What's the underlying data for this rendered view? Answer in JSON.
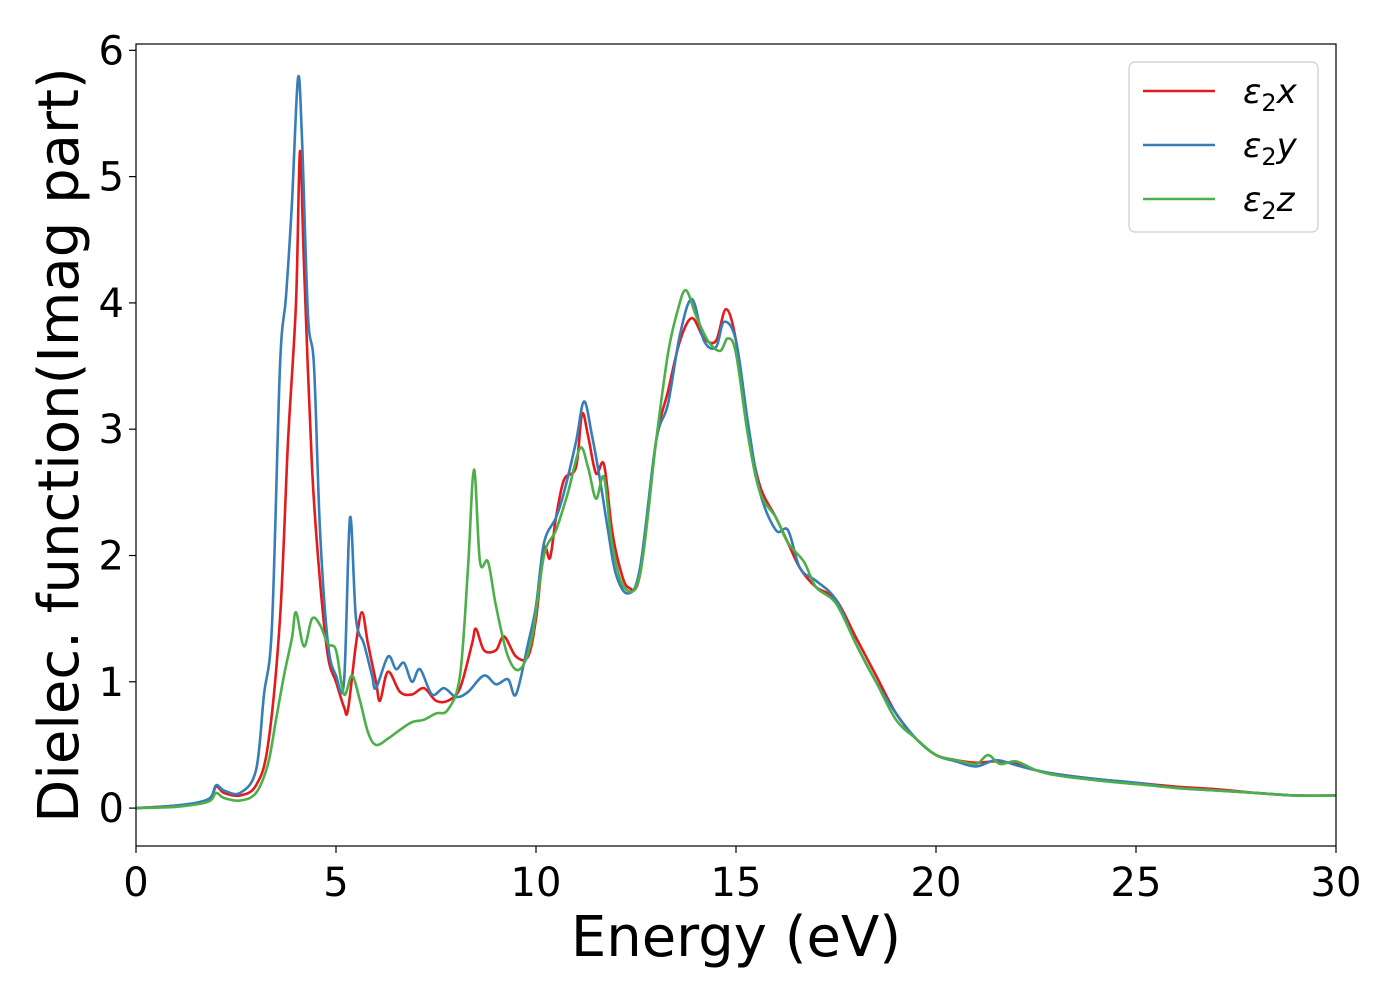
{
  "chart_data": {
    "type": "line",
    "title": "",
    "xlabel": "Energy (eV)",
    "ylabel": "Dielec. function(Imag part)",
    "xlim": [
      0,
      30
    ],
    "ylim": [
      -0.3,
      6.05
    ],
    "xticks": [
      0,
      5,
      10,
      15,
      20,
      25,
      30
    ],
    "xtick_labels": [
      "0",
      "5",
      "10",
      "15",
      "20",
      "25",
      "30"
    ],
    "yticks": [
      0,
      1,
      2,
      3,
      4,
      5,
      6
    ],
    "ytick_labels": [
      "0",
      "1",
      "2",
      "3",
      "4",
      "5",
      "6"
    ],
    "grid": false,
    "legend_position": "top-right",
    "series": [
      {
        "name": "ε₂x",
        "legend_base": "ε",
        "legend_sub": "2",
        "legend_tail": "x",
        "color": "#e41a1c",
        "points": [
          [
            0,
            0
          ],
          [
            1,
            0.02
          ],
          [
            1.8,
            0.06
          ],
          [
            2.0,
            0.17
          ],
          [
            2.2,
            0.12
          ],
          [
            2.6,
            0.1
          ],
          [
            3.0,
            0.18
          ],
          [
            3.3,
            0.5
          ],
          [
            3.6,
            1.5
          ],
          [
            3.8,
            2.9
          ],
          [
            4.0,
            4.0
          ],
          [
            4.1,
            5.2
          ],
          [
            4.2,
            4.3
          ],
          [
            4.4,
            2.7
          ],
          [
            4.6,
            1.8
          ],
          [
            4.8,
            1.2
          ],
          [
            5.0,
            1.0
          ],
          [
            5.2,
            0.8
          ],
          [
            5.3,
            0.78
          ],
          [
            5.5,
            1.3
          ],
          [
            5.65,
            1.55
          ],
          [
            5.8,
            1.3
          ],
          [
            6.0,
            1.0
          ],
          [
            6.1,
            0.85
          ],
          [
            6.3,
            1.08
          ],
          [
            6.6,
            0.92
          ],
          [
            6.9,
            0.9
          ],
          [
            7.2,
            0.95
          ],
          [
            7.5,
            0.85
          ],
          [
            7.8,
            0.85
          ],
          [
            8.1,
            0.95
          ],
          [
            8.4,
            1.3
          ],
          [
            8.5,
            1.42
          ],
          [
            8.7,
            1.25
          ],
          [
            9.0,
            1.25
          ],
          [
            9.2,
            1.36
          ],
          [
            9.5,
            1.2
          ],
          [
            9.8,
            1.2
          ],
          [
            10.0,
            1.5
          ],
          [
            10.2,
            2.05
          ],
          [
            10.35,
            1.98
          ],
          [
            10.5,
            2.3
          ],
          [
            10.7,
            2.6
          ],
          [
            11.0,
            2.7
          ],
          [
            11.15,
            3.12
          ],
          [
            11.3,
            2.95
          ],
          [
            11.5,
            2.65
          ],
          [
            11.7,
            2.72
          ],
          [
            11.9,
            2.2
          ],
          [
            12.1,
            1.9
          ],
          [
            12.3,
            1.75
          ],
          [
            12.6,
            1.85
          ],
          [
            13.0,
            2.9
          ],
          [
            13.3,
            3.3
          ],
          [
            13.6,
            3.7
          ],
          [
            13.9,
            3.88
          ],
          [
            14.2,
            3.72
          ],
          [
            14.5,
            3.7
          ],
          [
            14.75,
            3.95
          ],
          [
            15.0,
            3.7
          ],
          [
            15.3,
            3.0
          ],
          [
            15.6,
            2.55
          ],
          [
            16.0,
            2.3
          ],
          [
            16.3,
            2.1
          ],
          [
            16.6,
            1.9
          ],
          [
            17.0,
            1.75
          ],
          [
            17.5,
            1.65
          ],
          [
            18.0,
            1.35
          ],
          [
            18.5,
            1.05
          ],
          [
            19.0,
            0.75
          ],
          [
            19.5,
            0.55
          ],
          [
            20.0,
            0.42
          ],
          [
            20.5,
            0.38
          ],
          [
            21.0,
            0.36
          ],
          [
            21.5,
            0.37
          ],
          [
            22.0,
            0.35
          ],
          [
            22.5,
            0.3
          ],
          [
            23.0,
            0.27
          ],
          [
            24.0,
            0.23
          ],
          [
            25.0,
            0.2
          ],
          [
            26.0,
            0.17
          ],
          [
            27.0,
            0.15
          ],
          [
            28.0,
            0.12
          ],
          [
            29.0,
            0.1
          ],
          [
            30.0,
            0.1
          ]
        ]
      },
      {
        "name": "ε₂y",
        "legend_base": "ε",
        "legend_sub": "2",
        "legend_tail": "y",
        "color": "#377eb8",
        "points": [
          [
            0,
            0
          ],
          [
            1,
            0.02
          ],
          [
            1.8,
            0.07
          ],
          [
            2.0,
            0.18
          ],
          [
            2.2,
            0.14
          ],
          [
            2.6,
            0.12
          ],
          [
            3.0,
            0.3
          ],
          [
            3.2,
            0.9
          ],
          [
            3.4,
            1.45
          ],
          [
            3.6,
            3.5
          ],
          [
            3.75,
            4.05
          ],
          [
            3.9,
            4.8
          ],
          [
            4.05,
            5.78
          ],
          [
            4.15,
            5.3
          ],
          [
            4.3,
            3.9
          ],
          [
            4.45,
            3.5
          ],
          [
            4.6,
            2.2
          ],
          [
            4.8,
            1.3
          ],
          [
            5.0,
            1.05
          ],
          [
            5.2,
            1.0
          ],
          [
            5.35,
            2.3
          ],
          [
            5.5,
            1.5
          ],
          [
            5.7,
            1.3
          ],
          [
            5.9,
            1.05
          ],
          [
            6.0,
            0.95
          ],
          [
            6.3,
            1.2
          ],
          [
            6.5,
            1.1
          ],
          [
            6.7,
            1.15
          ],
          [
            6.9,
            1.0
          ],
          [
            7.1,
            1.1
          ],
          [
            7.4,
            0.9
          ],
          [
            7.7,
            0.95
          ],
          [
            8.0,
            0.88
          ],
          [
            8.3,
            0.92
          ],
          [
            8.7,
            1.05
          ],
          [
            9.0,
            0.98
          ],
          [
            9.3,
            1.02
          ],
          [
            9.5,
            0.9
          ],
          [
            9.8,
            1.3
          ],
          [
            10.0,
            1.6
          ],
          [
            10.2,
            2.1
          ],
          [
            10.5,
            2.3
          ],
          [
            10.7,
            2.5
          ],
          [
            11.0,
            2.9
          ],
          [
            11.2,
            3.22
          ],
          [
            11.4,
            2.95
          ],
          [
            11.6,
            2.6
          ],
          [
            11.8,
            2.2
          ],
          [
            12.0,
            1.85
          ],
          [
            12.3,
            1.7
          ],
          [
            12.6,
            1.9
          ],
          [
            13.0,
            2.9
          ],
          [
            13.3,
            3.2
          ],
          [
            13.6,
            3.75
          ],
          [
            13.9,
            4.03
          ],
          [
            14.2,
            3.7
          ],
          [
            14.5,
            3.65
          ],
          [
            14.7,
            3.85
          ],
          [
            15.0,
            3.7
          ],
          [
            15.3,
            3.05
          ],
          [
            15.6,
            2.5
          ],
          [
            16.0,
            2.2
          ],
          [
            16.3,
            2.2
          ],
          [
            16.6,
            1.9
          ],
          [
            17.0,
            1.8
          ],
          [
            17.5,
            1.65
          ],
          [
            18.0,
            1.3
          ],
          [
            18.5,
            1.0
          ],
          [
            19.0,
            0.75
          ],
          [
            19.5,
            0.55
          ],
          [
            20.0,
            0.42
          ],
          [
            20.5,
            0.37
          ],
          [
            21.0,
            0.33
          ],
          [
            21.5,
            0.38
          ],
          [
            22.0,
            0.34
          ],
          [
            22.5,
            0.3
          ],
          [
            23.0,
            0.27
          ],
          [
            24.0,
            0.23
          ],
          [
            25.0,
            0.2
          ],
          [
            26.0,
            0.16
          ],
          [
            27.0,
            0.14
          ],
          [
            28.0,
            0.12
          ],
          [
            29.0,
            0.1
          ],
          [
            30.0,
            0.1
          ]
        ]
      },
      {
        "name": "ε₂z",
        "legend_base": "ε",
        "legend_sub": "2",
        "legend_tail": "z",
        "color": "#4daf4a",
        "points": [
          [
            0,
            0
          ],
          [
            1,
            0.01
          ],
          [
            1.8,
            0.05
          ],
          [
            2.0,
            0.12
          ],
          [
            2.2,
            0.08
          ],
          [
            2.6,
            0.06
          ],
          [
            3.0,
            0.12
          ],
          [
            3.3,
            0.35
          ],
          [
            3.5,
            0.7
          ],
          [
            3.7,
            1.05
          ],
          [
            3.9,
            1.35
          ],
          [
            4.0,
            1.55
          ],
          [
            4.2,
            1.28
          ],
          [
            4.4,
            1.5
          ],
          [
            4.6,
            1.45
          ],
          [
            4.8,
            1.3
          ],
          [
            5.0,
            1.25
          ],
          [
            5.2,
            0.9
          ],
          [
            5.4,
            1.05
          ],
          [
            5.6,
            0.85
          ],
          [
            5.8,
            0.6
          ],
          [
            6.0,
            0.5
          ],
          [
            6.3,
            0.55
          ],
          [
            6.6,
            0.62
          ],
          [
            6.9,
            0.68
          ],
          [
            7.2,
            0.7
          ],
          [
            7.5,
            0.75
          ],
          [
            7.8,
            0.78
          ],
          [
            8.1,
            1.05
          ],
          [
            8.3,
            1.9
          ],
          [
            8.45,
            2.68
          ],
          [
            8.6,
            1.95
          ],
          [
            8.8,
            1.95
          ],
          [
            9.0,
            1.6
          ],
          [
            9.3,
            1.2
          ],
          [
            9.6,
            1.1
          ],
          [
            9.9,
            1.35
          ],
          [
            10.2,
            2.0
          ],
          [
            10.5,
            2.2
          ],
          [
            10.8,
            2.5
          ],
          [
            11.1,
            2.85
          ],
          [
            11.3,
            2.7
          ],
          [
            11.5,
            2.45
          ],
          [
            11.7,
            2.62
          ],
          [
            11.9,
            2.1
          ],
          [
            12.2,
            1.75
          ],
          [
            12.6,
            1.85
          ],
          [
            13.0,
            2.9
          ],
          [
            13.3,
            3.6
          ],
          [
            13.55,
            3.95
          ],
          [
            13.75,
            4.1
          ],
          [
            14.0,
            3.9
          ],
          [
            14.3,
            3.7
          ],
          [
            14.6,
            3.62
          ],
          [
            14.8,
            3.72
          ],
          [
            15.0,
            3.6
          ],
          [
            15.3,
            2.95
          ],
          [
            15.6,
            2.5
          ],
          [
            16.0,
            2.3
          ],
          [
            16.3,
            2.1
          ],
          [
            16.7,
            1.95
          ],
          [
            17.0,
            1.75
          ],
          [
            17.5,
            1.62
          ],
          [
            18.0,
            1.3
          ],
          [
            18.5,
            1.0
          ],
          [
            19.0,
            0.7
          ],
          [
            19.5,
            0.55
          ],
          [
            20.0,
            0.42
          ],
          [
            20.5,
            0.38
          ],
          [
            21.0,
            0.35
          ],
          [
            21.3,
            0.42
          ],
          [
            21.6,
            0.35
          ],
          [
            22.0,
            0.37
          ],
          [
            22.5,
            0.3
          ],
          [
            23.0,
            0.26
          ],
          [
            24.0,
            0.22
          ],
          [
            25.0,
            0.19
          ],
          [
            26.0,
            0.16
          ],
          [
            27.0,
            0.14
          ],
          [
            28.0,
            0.12
          ],
          [
            29.0,
            0.1
          ],
          [
            30.0,
            0.1
          ]
        ]
      }
    ]
  }
}
